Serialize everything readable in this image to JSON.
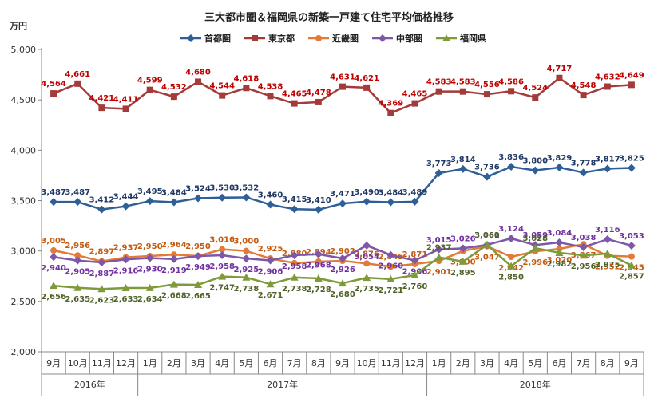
{
  "chart_data": {
    "type": "line",
    "title": "三大都市圏＆福岡県の新築一戸建て住宅平均価格推移",
    "ylabel": "万円",
    "ylim": [
      2000,
      5000
    ],
    "yticks": [
      "2,000",
      "2,500",
      "3,000",
      "3,500",
      "4,000",
      "4,500",
      "5,000"
    ],
    "categories": [
      "9月",
      "10月",
      "11月",
      "12月",
      "1月",
      "2月",
      "3月",
      "4月",
      "5月",
      "6月",
      "7月",
      "8月",
      "9月",
      "10月",
      "11月",
      "12月",
      "1月",
      "2月",
      "3月",
      "4月",
      "5月",
      "6月",
      "7月",
      "8月",
      "9月"
    ],
    "year_groups": [
      {
        "label": "2016年",
        "start": 0,
        "end": 3
      },
      {
        "label": "2017年",
        "start": 4,
        "end": 15
      },
      {
        "label": "2018年",
        "start": 16,
        "end": 24
      }
    ],
    "legend_position": "top-center",
    "grid": false,
    "series": [
      {
        "name": "首都圏",
        "color": "#2e5f97",
        "label_color": "#1f3864",
        "marker": "diamond",
        "values": [
          3487,
          3487,
          3412,
          3444,
          3495,
          3484,
          3524,
          3530,
          3532,
          3460,
          3415,
          3410,
          3471,
          3490,
          3484,
          3489,
          3773,
          3814,
          3736,
          3836,
          3800,
          3829,
          3778,
          3817,
          3825
        ],
        "labels": [
          "3,487",
          "3,487",
          "3,412",
          "3,444",
          "3,495",
          "3,484",
          "3,524",
          "3,530",
          "3,532",
          "3,460",
          "3,415",
          "3,410",
          "3,471",
          "3,490",
          "3,484",
          "3,489",
          "3,773",
          "3,814",
          "3,736",
          "3,836",
          "3,800",
          "3,829",
          "3,778",
          "3,817",
          "3,825"
        ]
      },
      {
        "name": "東京都",
        "color": "#a33b3b",
        "label_color": "#c00000",
        "marker": "square",
        "values": [
          4564,
          4661,
          4421,
          4411,
          4599,
          4532,
          4680,
          4544,
          4618,
          4538,
          4465,
          4478,
          4631,
          4621,
          4369,
          4465,
          4583,
          4583,
          4556,
          4586,
          4524,
          4717,
          4548,
          4632,
          4649
        ],
        "labels": [
          "4,564",
          "4,661",
          "4,421",
          "4,411",
          "4,599",
          "4,532",
          "4,680",
          "4,544",
          "4,618",
          "4,538",
          "4,465",
          "4,478",
          "4,631",
          "4,621",
          "4,369",
          "4,465",
          "4,583",
          "4,583",
          "4,556",
          "4,586",
          "4,524",
          "4,717",
          "4,548",
          "4,632",
          "4,649"
        ]
      },
      {
        "name": "近畿圏",
        "color": "#e07b39",
        "label_color": "#c55a11",
        "marker": "circle",
        "values": [
          3005,
          2956,
          2897,
          2937,
          2950,
          2964,
          2950,
          3016,
          3000,
          2925,
          2880,
          2894,
          2902,
          2876,
          2845,
          2871,
          2901,
          3000,
          3047,
          2942,
          2996,
          3020,
          3067,
          2952,
          2945
        ],
        "labels": [
          "3,005",
          "2,956",
          "2,897",
          "2,937",
          "2,950",
          "2,964",
          "2,950",
          "3,016",
          "3,000",
          "2,925",
          "2,880",
          "2,894",
          "2,902",
          "2,876",
          "2,845",
          "2,871",
          "2,901",
          "3,000",
          "3,047",
          "2,942",
          "2,996",
          "3,020",
          "3,067",
          "2,952",
          "2,945"
        ]
      },
      {
        "name": "中部圏",
        "color": "#7e57a8",
        "label_color": "#7030a0",
        "marker": "diamond",
        "values": [
          2940,
          2905,
          2887,
          2916,
          2930,
          2919,
          2949,
          2958,
          2925,
          2906,
          2958,
          2968,
          2926,
          3054,
          2960,
          2906,
          3015,
          3026,
          3061,
          3124,
          3059,
          3084,
          3038,
          3116,
          3053
        ],
        "labels": [
          "2,940",
          "2,905",
          "2,887",
          "2,916",
          "2,930",
          "2,919",
          "2,949",
          "2,958",
          "2,925",
          "2,906",
          "2,958",
          "2,968",
          "2,926",
          "3,054",
          "2,960",
          "2,906",
          "3,015",
          "3,026",
          "3,061",
          "3,124",
          "3,059",
          "3,084",
          "3,038",
          "3,116",
          "3,053"
        ]
      },
      {
        "name": "福岡県",
        "color": "#7f9a3a",
        "label_color": "#4f6228",
        "marker": "triangle",
        "values": [
          2656,
          2635,
          2623,
          2633,
          2634,
          2668,
          2665,
          2747,
          2738,
          2671,
          2738,
          2728,
          2680,
          2735,
          2721,
          2760,
          2937,
          2895,
          3060,
          2850,
          3028,
          2982,
          2956,
          2975,
          2857
        ],
        "labels": [
          "2,656",
          "2,635",
          "2,623",
          "2,633",
          "2,634",
          "2,668",
          "2,665",
          "2,747",
          "2,738",
          "2,671",
          "2,738",
          "2,728",
          "2,680",
          "2,735",
          "2,721",
          "2,760",
          "2,937",
          "2,895",
          "3,060",
          "2,850",
          "3,028",
          "2,982",
          "2,956",
          "2,975",
          "2,857"
        ]
      }
    ]
  }
}
